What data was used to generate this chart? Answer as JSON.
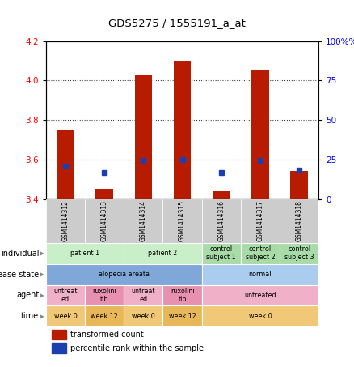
{
  "title": "GDS5275 / 1555191_a_at",
  "samples": [
    "GSM1414312",
    "GSM1414313",
    "GSM1414314",
    "GSM1414315",
    "GSM1414316",
    "GSM1414317",
    "GSM1414318"
  ],
  "red_values": [
    3.75,
    3.45,
    4.03,
    4.1,
    3.44,
    4.05,
    3.54
  ],
  "blue_values": [
    3.565,
    3.535,
    3.595,
    3.6,
    3.535,
    3.595,
    3.545
  ],
  "ymin": 3.4,
  "ymax": 4.2,
  "yticks": [
    3.4,
    3.6,
    3.8,
    4.0,
    4.2
  ],
  "y2ticks": [
    0,
    25,
    50,
    75,
    100
  ],
  "bar_color": "#b81c00",
  "dot_color": "#1a3fb0",
  "grid_color": "#444444",
  "sample_bg": "#cccccc",
  "annotation_red": "transformed count",
  "annotation_blue": "percentile rank within the sample",
  "individual_data": [
    {
      "label": "patient 1",
      "start": 0,
      "end": 2,
      "color": "#c8efc8"
    },
    {
      "label": "patient 2",
      "start": 2,
      "end": 4,
      "color": "#c8efc8"
    },
    {
      "label": "control\nsubject 1",
      "start": 4,
      "end": 5,
      "color": "#a8dba8"
    },
    {
      "label": "control\nsubject 2",
      "start": 5,
      "end": 6,
      "color": "#a8dba8"
    },
    {
      "label": "control\nsubject 3",
      "start": 6,
      "end": 7,
      "color": "#a8dba8"
    }
  ],
  "disease_data": [
    {
      "label": "alopecia areata",
      "start": 0,
      "end": 4,
      "color": "#7fa8d8"
    },
    {
      "label": "normal",
      "start": 4,
      "end": 7,
      "color": "#aaccee"
    }
  ],
  "agent_data": [
    {
      "label": "untreat\ned",
      "start": 0,
      "end": 1,
      "color": "#f0b0c8"
    },
    {
      "label": "ruxolini\ntib",
      "start": 1,
      "end": 2,
      "color": "#e890b0"
    },
    {
      "label": "untreat\ned",
      "start": 2,
      "end": 3,
      "color": "#f0b0c8"
    },
    {
      "label": "ruxolini\ntib",
      "start": 3,
      "end": 4,
      "color": "#e890b0"
    },
    {
      "label": "untreated",
      "start": 4,
      "end": 7,
      "color": "#f0b0c8"
    }
  ],
  "time_data": [
    {
      "label": "week 0",
      "start": 0,
      "end": 1,
      "color": "#f0c878"
    },
    {
      "label": "week 12",
      "start": 1,
      "end": 2,
      "color": "#e8b858"
    },
    {
      "label": "week 0",
      "start": 2,
      "end": 3,
      "color": "#f0c878"
    },
    {
      "label": "week 12",
      "start": 3,
      "end": 4,
      "color": "#e8b858"
    },
    {
      "label": "week 0",
      "start": 4,
      "end": 7,
      "color": "#f0c878"
    }
  ],
  "row_names": [
    "individual",
    "disease state",
    "agent",
    "time"
  ]
}
